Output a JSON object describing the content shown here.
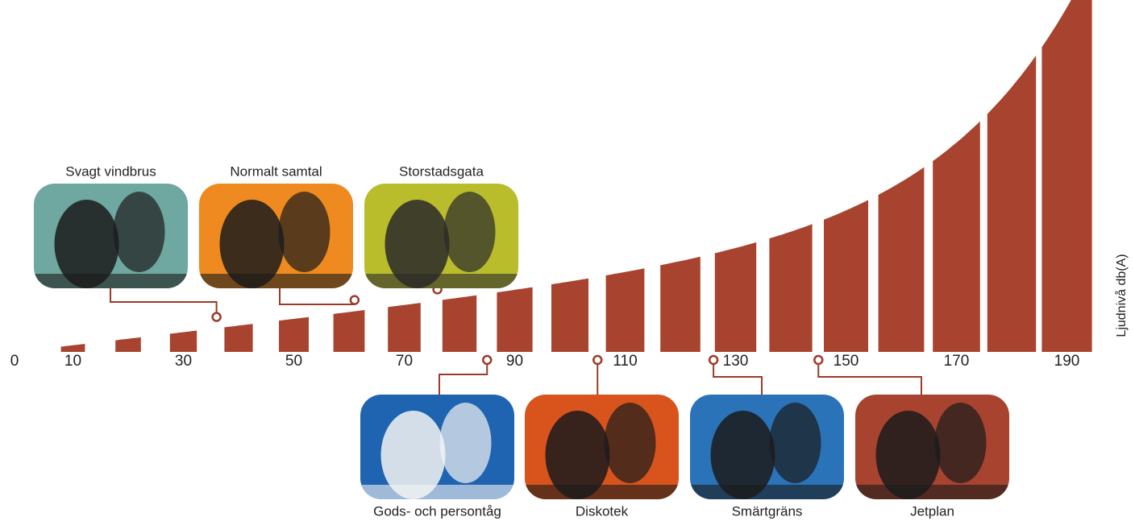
{
  "chart_data": {
    "type": "bar",
    "y_label": "Ljudnivå db(A)",
    "x": [
      10,
      20,
      30,
      40,
      50,
      60,
      70,
      80,
      90,
      100,
      110,
      120,
      130,
      140,
      150,
      160,
      170,
      180,
      190
    ],
    "color": "#a8432f",
    "xlim": [
      0,
      190
    ],
    "xticks": [
      0,
      10,
      30,
      50,
      70,
      90,
      110,
      130,
      150,
      170,
      190
    ],
    "annotations": [
      {
        "label": "Svagt vindbrus",
        "db": 36
      },
      {
        "label": "Normalt samtal",
        "db": 61
      },
      {
        "label": "Storstadsgata",
        "db": 76
      },
      {
        "label": "Gods- och persontåg",
        "db": 85
      },
      {
        "label": "Diskotek",
        "db": 105
      },
      {
        "label": "Smärtgräns",
        "db": 126
      },
      {
        "label": "Jetplan",
        "db": 145
      }
    ]
  }
}
